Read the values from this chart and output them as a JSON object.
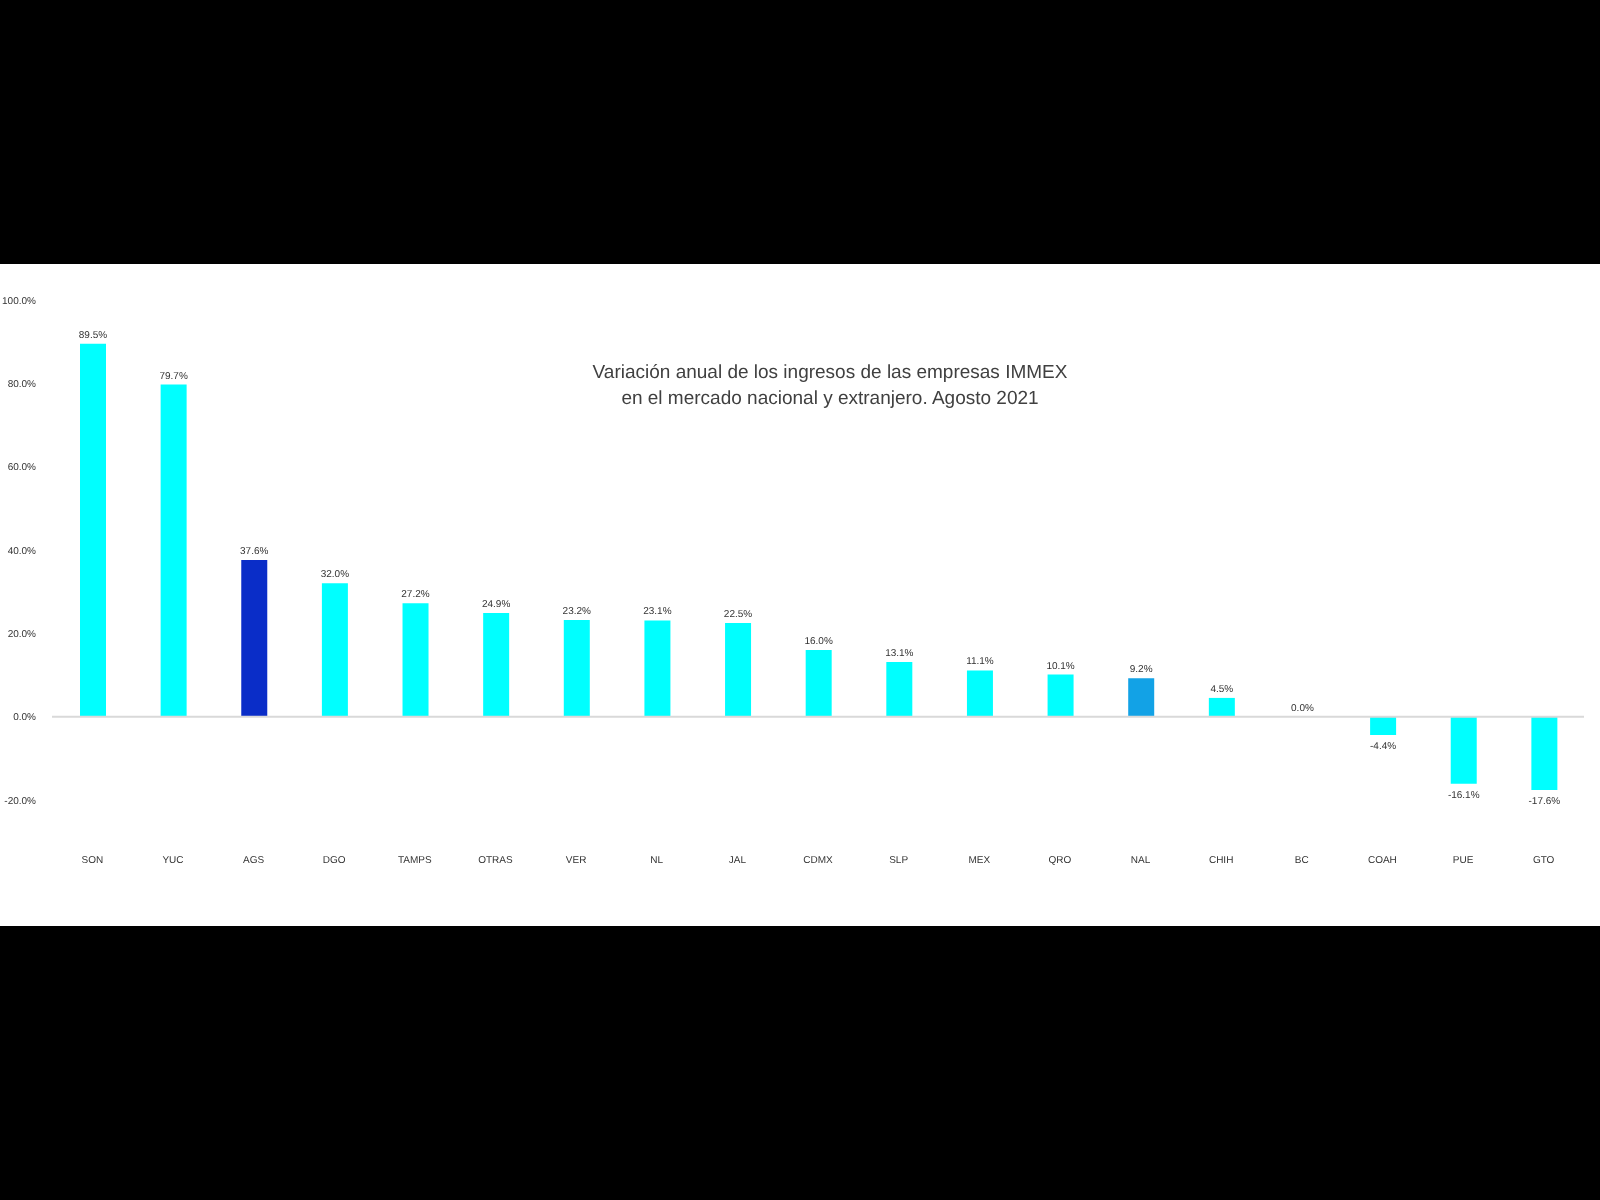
{
  "chart_data": {
    "type": "bar",
    "title": "Variación anual de los ingresos de las empresas IMMEX\nen el mercado nacional y extranjero. Agosto 2021",
    "categories": [
      "SON",
      "YUC",
      "AGS",
      "DGO",
      "TAMPS",
      "OTRAS",
      "VER",
      "NL",
      "JAL",
      "CDMX",
      "SLP",
      "MEX",
      "QRO",
      "NAL",
      "CHIH",
      "BC",
      "COAH",
      "PUE",
      "GTO"
    ],
    "values": [
      89.5,
      79.7,
      37.6,
      32.0,
      27.2,
      24.9,
      23.2,
      23.1,
      22.5,
      16.0,
      13.1,
      11.1,
      10.1,
      9.2,
      4.5,
      0.0,
      -4.4,
      -16.1,
      -17.6
    ],
    "value_labels": [
      "89.5%",
      "79.7%",
      "37.6%",
      "32.0%",
      "27.2%",
      "24.9%",
      "23.2%",
      "23.1%",
      "22.5%",
      "16.0%",
      "13.1%",
      "11.1%",
      "10.1%",
      "9.2%",
      "4.5%",
      "0.0%",
      "-4.4%",
      "-16.1%",
      "-17.6%"
    ],
    "colors": [
      "#00ffff",
      "#00ffff",
      "#0a2dc8",
      "#00ffff",
      "#00ffff",
      "#00ffff",
      "#00ffff",
      "#00ffff",
      "#00ffff",
      "#00ffff",
      "#00ffff",
      "#00ffff",
      "#00ffff",
      "#12a2e6",
      "#00ffff",
      "#00ffff",
      "#00ffff",
      "#00ffff",
      "#00ffff"
    ],
    "ylim": [
      -20,
      100
    ],
    "yticks": [
      {
        "value": -20,
        "label": "-20.0%"
      },
      {
        "value": 0,
        "label": "0.0%"
      },
      {
        "value": 20,
        "label": "20.0%"
      },
      {
        "value": 40,
        "label": "40.0%"
      },
      {
        "value": 60,
        "label": "60.0%"
      },
      {
        "value": 80,
        "label": "80.0%"
      },
      {
        "value": 100,
        "label": "100.0%"
      }
    ],
    "ref_lines": [
      {
        "axis": "y",
        "value": 0,
        "color": "#d9d9d9"
      }
    ]
  }
}
